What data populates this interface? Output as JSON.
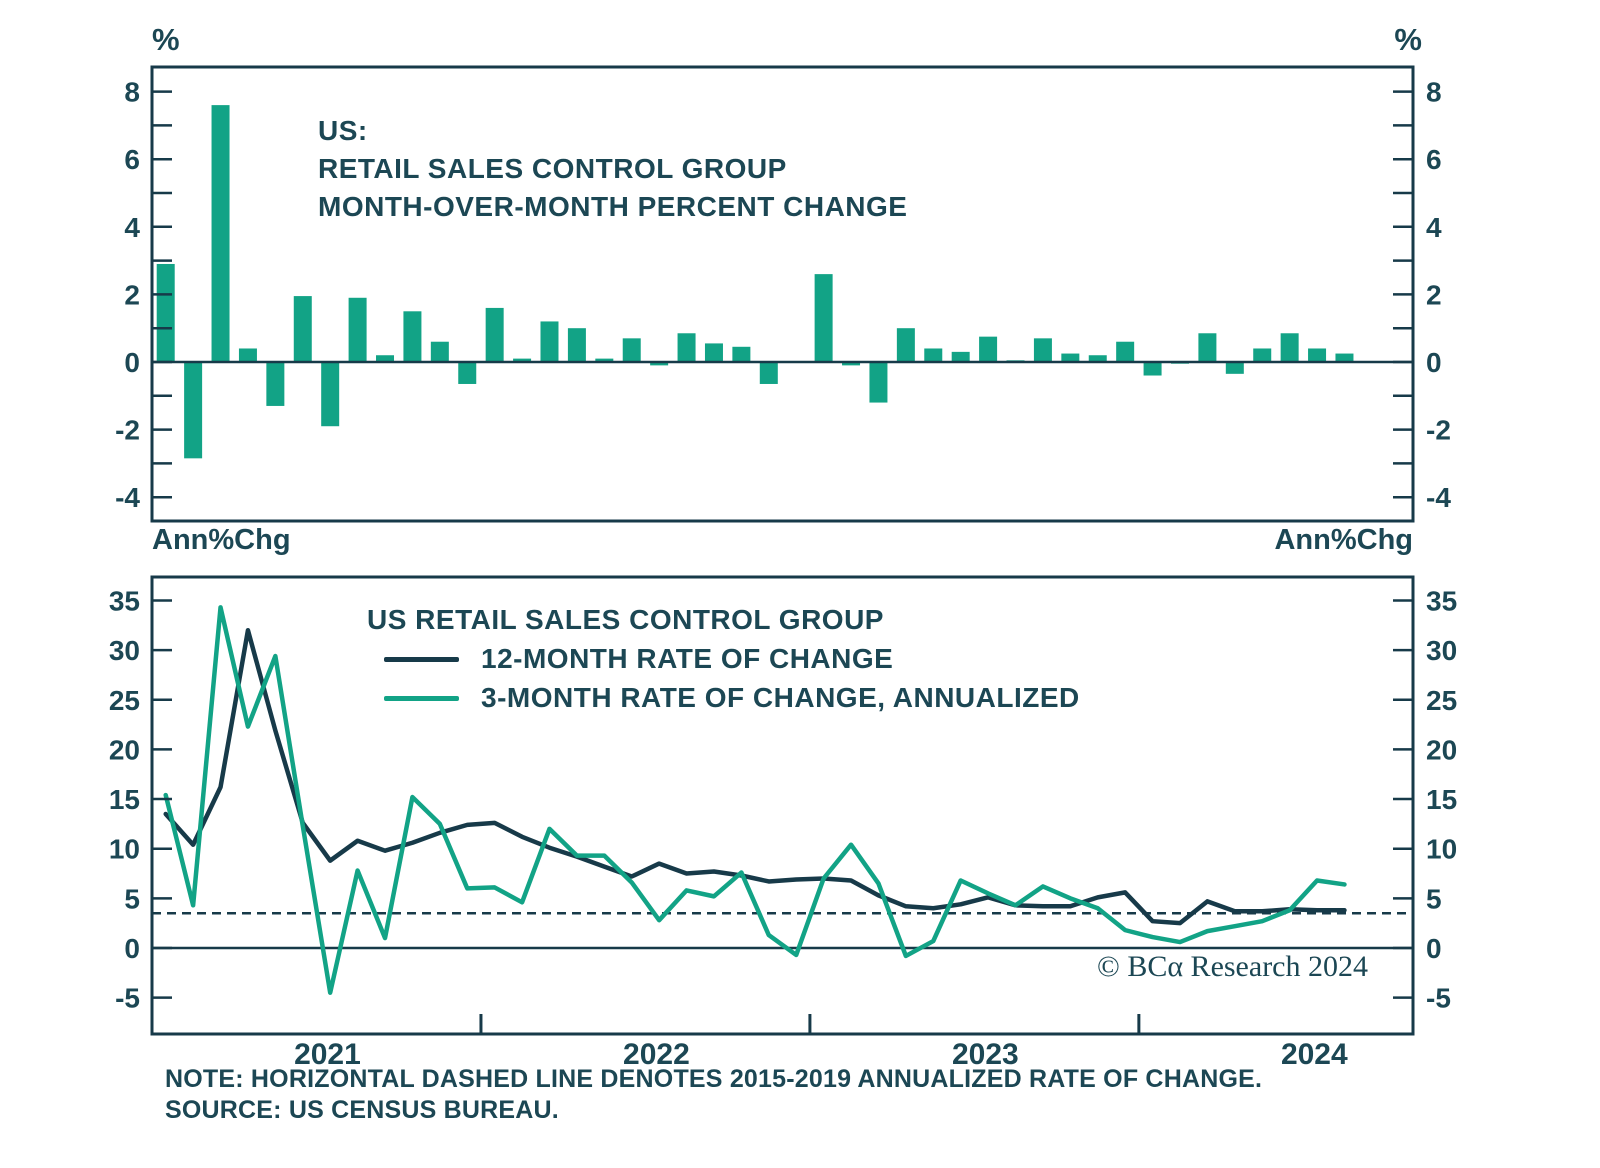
{
  "page": {
    "copyright": "© BCα Research 2024",
    "note_line1": "NOTE: HORIZONTAL DASHED LINE DENOTES 2015-2019 ANNUALIZED RATE OF CHANGE.",
    "note_line2": "SOURCE: US CENSUS BUREAU.",
    "colors": {
      "green": "#12A386",
      "line": "#173A49",
      "text": "#1C4754",
      "background": "#FFFFFF"
    }
  },
  "chart_data": [
    {
      "type": "bar",
      "title_lines": [
        "US:",
        "RETAIL SALES CONTROL GROUP",
        "MONTH-OVER-MONTH PERCENT CHANGE"
      ],
      "ylabel_left": "%",
      "ylabel_right": "%",
      "ylim": [
        -4.7,
        8.7
      ],
      "yticks_labeled": [
        8,
        6,
        4,
        2,
        0,
        -2,
        -4
      ],
      "ytick_minor_step": 1,
      "grid": false,
      "bar_color": "#12A386",
      "x_months": [
        "2021-01",
        "2021-02",
        "2021-03",
        "2021-04",
        "2021-05",
        "2021-06",
        "2021-07",
        "2021-08",
        "2021-09",
        "2021-10",
        "2021-11",
        "2021-12",
        "2022-01",
        "2022-02",
        "2022-03",
        "2022-04",
        "2022-05",
        "2022-06",
        "2022-07",
        "2022-08",
        "2022-09",
        "2022-10",
        "2022-11",
        "2022-12",
        "2023-01",
        "2023-02",
        "2023-03",
        "2023-04",
        "2023-05",
        "2023-06",
        "2023-07",
        "2023-08",
        "2023-09",
        "2023-10",
        "2023-11",
        "2023-12",
        "2024-01",
        "2024-02",
        "2024-03",
        "2024-04",
        "2024-05",
        "2024-06",
        "2024-07",
        "2024-08"
      ],
      "values": [
        2.9,
        -2.85,
        7.6,
        0.4,
        -1.3,
        1.95,
        -1.9,
        1.9,
        0.2,
        1.5,
        0.6,
        -0.65,
        1.6,
        0.1,
        1.2,
        1.0,
        0.1,
        0.7,
        -0.1,
        0.85,
        0.55,
        0.45,
        -0.65,
        0.0,
        2.6,
        -0.1,
        -1.2,
        1.0,
        0.4,
        0.3,
        0.75,
        0.05,
        0.7,
        0.25,
        0.2,
        0.6,
        -0.4,
        -0.05,
        0.85,
        -0.35,
        0.4,
        0.85,
        0.4,
        0.25
      ]
    },
    {
      "type": "line",
      "legend_title": "US RETAIL SALES CONTROL GROUP",
      "legend_position": "top-center-inside",
      "ylabel_left": "Ann%Chg",
      "ylabel_right": "Ann%Chg",
      "ylim": [
        -8.7,
        37.4
      ],
      "yticks_labeled": [
        35,
        30,
        25,
        20,
        15,
        10,
        5,
        0,
        -5
      ],
      "grid": false,
      "dashed_line_value": 3.5,
      "zero_line": true,
      "x_year_ticks": [
        2022,
        2023,
        2024
      ],
      "x_year_labels": [
        "2021",
        "2022",
        "2023",
        "2024"
      ],
      "x_months": [
        "2021-01",
        "2021-02",
        "2021-03",
        "2021-04",
        "2021-05",
        "2021-06",
        "2021-07",
        "2021-08",
        "2021-09",
        "2021-10",
        "2021-11",
        "2021-12",
        "2022-01",
        "2022-02",
        "2022-03",
        "2022-04",
        "2022-05",
        "2022-06",
        "2022-07",
        "2022-08",
        "2022-09",
        "2022-10",
        "2022-11",
        "2022-12",
        "2023-01",
        "2023-02",
        "2023-03",
        "2023-04",
        "2023-05",
        "2023-06",
        "2023-07",
        "2023-08",
        "2023-09",
        "2023-10",
        "2023-11",
        "2023-12",
        "2024-01",
        "2024-02",
        "2024-03",
        "2024-04",
        "2024-05",
        "2024-06",
        "2024-07",
        "2024-08"
      ],
      "series": [
        {
          "name": "12-MONTH RATE OF CHANGE",
          "color": "#173A49",
          "values": [
            13.5,
            10.4,
            16.2,
            32.0,
            21.9,
            12.6,
            8.8,
            10.8,
            9.8,
            10.6,
            11.6,
            12.4,
            12.6,
            11.2,
            10.1,
            9.2,
            8.2,
            7.2,
            8.5,
            7.5,
            7.7,
            7.3,
            6.7,
            6.9,
            7.0,
            6.8,
            5.3,
            4.2,
            4.0,
            4.4,
            5.1,
            4.3,
            4.2,
            4.2,
            5.1,
            5.6,
            2.7,
            2.5,
            4.7,
            3.7,
            3.7,
            3.9,
            3.8,
            3.8
          ]
        },
        {
          "name": "3-MONTH RATE OF CHANGE, ANNUALIZED",
          "color": "#12A386",
          "values": [
            15.4,
            4.3,
            34.3,
            22.3,
            29.4,
            12.3,
            -4.5,
            7.8,
            1.0,
            15.2,
            12.5,
            6.0,
            6.1,
            4.6,
            12.0,
            9.3,
            9.3,
            6.6,
            2.8,
            5.8,
            5.2,
            7.6,
            1.3,
            -0.7,
            7.0,
            10.4,
            6.5,
            -0.8,
            0.7,
            6.8,
            5.5,
            4.3,
            6.2,
            5.0,
            4.0,
            1.8,
            1.1,
            0.6,
            1.7,
            2.2,
            2.7,
            3.8,
            6.8,
            6.4
          ]
        }
      ]
    }
  ]
}
